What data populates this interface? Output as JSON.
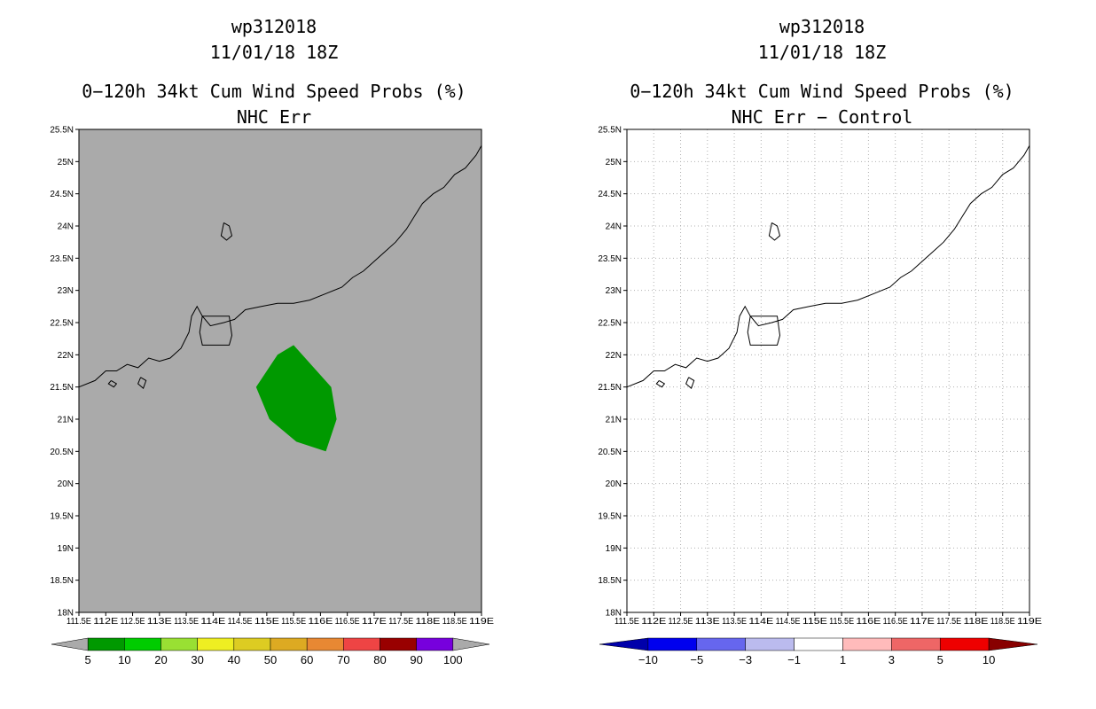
{
  "chart_data": [
    {
      "type": "heatmap",
      "title": [
        "wp312018",
        "11/01/18 18Z",
        "0−120h 34kt Cum Wind Speed Probs (%)",
        "NHC Err"
      ],
      "xlim": [
        111.5,
        119
      ],
      "ylim": [
        18,
        25.5
      ],
      "x_ticks": [
        "111.5E",
        "112E",
        "112.5E",
        "113E",
        "113.5E",
        "114E",
        "114.5E",
        "115E",
        "115.5E",
        "116E",
        "116.5E",
        "117E",
        "117.5E",
        "118E",
        "118.5E",
        "119E"
      ],
      "y_ticks": [
        "18N",
        "18.5N",
        "19N",
        "19.5N",
        "20N",
        "20.5N",
        "21N",
        "21.5N",
        "22N",
        "22.5N",
        "23N",
        "23.5N",
        "24N",
        "24.5N",
        "25N",
        "25.5N"
      ],
      "background_color": "#aaaaaa",
      "grid": false,
      "regions": [
        {
          "level_range": [
            5,
            10
          ],
          "color": "#009900",
          "polygon_lonlat": [
            [
              115.5,
              22.15
            ],
            [
              115.2,
              22.0
            ],
            [
              114.8,
              21.5
            ],
            [
              115.05,
              21.0
            ],
            [
              115.55,
              20.65
            ],
            [
              116.1,
              20.5
            ],
            [
              116.3,
              21.0
            ],
            [
              116.2,
              21.5
            ]
          ]
        }
      ],
      "colorbar": {
        "labels": [
          "5",
          "10",
          "20",
          "30",
          "40",
          "50",
          "60",
          "70",
          "80",
          "90",
          "100"
        ],
        "colors": [
          "#009900",
          "#00cc00",
          "#99e033",
          "#eeee22",
          "#ddcc22",
          "#ddaa22",
          "#e88833",
          "#ee4444",
          "#990000",
          "#7700dd"
        ],
        "end_colors": [
          "#aaaaaa",
          "#aaaaaa"
        ]
      }
    },
    {
      "type": "heatmap",
      "title": [
        "wp312018",
        "11/01/18 18Z",
        "0−120h 34kt Cum Wind Speed Probs (%)",
        "NHC Err − Control"
      ],
      "xlim": [
        111.5,
        119
      ],
      "ylim": [
        18,
        25.5
      ],
      "x_ticks": [
        "111.5E",
        "112E",
        "112.5E",
        "113E",
        "113.5E",
        "114E",
        "114.5E",
        "115E",
        "115.5E",
        "116E",
        "116.5E",
        "117E",
        "117.5E",
        "118E",
        "118.5E",
        "119E"
      ],
      "y_ticks": [
        "18N",
        "18.5N",
        "19N",
        "19.5N",
        "20N",
        "20.5N",
        "21N",
        "21.5N",
        "22N",
        "22.5N",
        "23N",
        "23.5N",
        "24N",
        "24.5N",
        "25N",
        "25.5N"
      ],
      "background_color": "#ffffff",
      "grid": true,
      "regions": [],
      "colorbar": {
        "labels": [
          "−10",
          "−5",
          "−3",
          "−1",
          "1",
          "3",
          "5",
          "10"
        ],
        "colors": [
          "#0000ee",
          "#6666ee",
          "#bbbbee",
          "#ffffff",
          "#ffbbbb",
          "#ee6666",
          "#ee0000"
        ],
        "end_colors": [
          "#0000aa",
          "#880000"
        ]
      }
    }
  ],
  "coastline_lonlat": [
    [
      111.5,
      21.5
    ],
    [
      111.8,
      21.6
    ],
    [
      112.0,
      21.75
    ],
    [
      112.2,
      21.75
    ],
    [
      112.4,
      21.85
    ],
    [
      112.6,
      21.8
    ],
    [
      112.8,
      21.95
    ],
    [
      113.0,
      21.9
    ],
    [
      113.2,
      21.95
    ],
    [
      113.4,
      22.1
    ],
    [
      113.55,
      22.35
    ],
    [
      113.6,
      22.6
    ],
    [
      113.7,
      22.75
    ],
    [
      113.8,
      22.6
    ],
    [
      113.95,
      22.45
    ],
    [
      114.2,
      22.5
    ],
    [
      114.4,
      22.55
    ],
    [
      114.6,
      22.7
    ],
    [
      114.9,
      22.75
    ],
    [
      115.2,
      22.8
    ],
    [
      115.5,
      22.8
    ],
    [
      115.8,
      22.85
    ],
    [
      116.1,
      22.95
    ],
    [
      116.4,
      23.05
    ],
    [
      116.6,
      23.2
    ],
    [
      116.8,
      23.3
    ],
    [
      117.0,
      23.45
    ],
    [
      117.2,
      23.6
    ],
    [
      117.4,
      23.75
    ],
    [
      117.6,
      23.95
    ],
    [
      117.75,
      24.15
    ],
    [
      117.9,
      24.35
    ],
    [
      118.1,
      24.5
    ],
    [
      118.3,
      24.6
    ],
    [
      118.5,
      24.8
    ],
    [
      118.7,
      24.9
    ],
    [
      118.9,
      25.1
    ],
    [
      119.0,
      25.25
    ]
  ],
  "islands_lonlat": [
    [
      [
        114.2,
        24.05
      ],
      [
        114.3,
        24.0
      ],
      [
        114.35,
        23.85
      ],
      [
        114.25,
        23.78
      ],
      [
        114.15,
        23.85
      ],
      [
        114.2,
        24.05
      ]
    ],
    [
      [
        113.8,
        22.6
      ],
      [
        114.3,
        22.6
      ],
      [
        114.35,
        22.3
      ],
      [
        114.3,
        22.15
      ],
      [
        113.8,
        22.15
      ],
      [
        113.75,
        22.35
      ],
      [
        113.8,
        22.6
      ]
    ],
    [
      [
        112.1,
        21.6
      ],
      [
        112.2,
        21.55
      ],
      [
        112.15,
        21.5
      ],
      [
        112.05,
        21.55
      ],
      [
        112.1,
        21.6
      ]
    ],
    [
      [
        112.65,
        21.65
      ],
      [
        112.75,
        21.6
      ],
      [
        112.7,
        21.48
      ],
      [
        112.6,
        21.55
      ],
      [
        112.65,
        21.65
      ]
    ]
  ]
}
